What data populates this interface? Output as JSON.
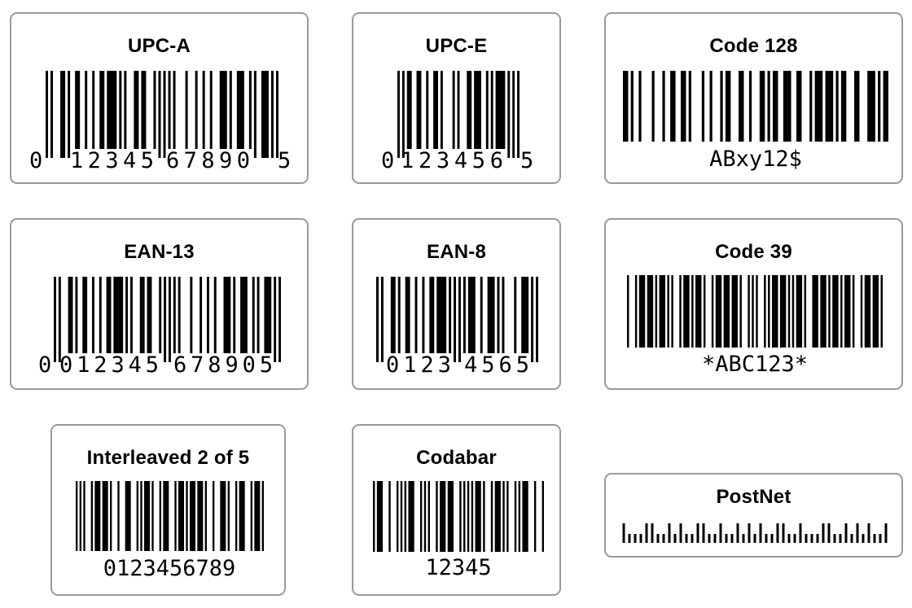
{
  "cards": [
    {
      "title": "UPC-A",
      "text": [
        "0",
        "12345",
        "67890",
        "5"
      ]
    },
    {
      "title": "UPC-E",
      "text": [
        "0",
        "123456",
        "5"
      ]
    },
    {
      "title": "Code 128",
      "text": [
        "ABxy12$"
      ]
    },
    {
      "title": "EAN-13",
      "text": [
        "0",
        "012345",
        "678905"
      ]
    },
    {
      "title": "EAN-8",
      "text": [
        "0123",
        "4565"
      ]
    },
    {
      "title": "Code 39",
      "text": [
        "*ABC123*"
      ]
    },
    {
      "title": "Interleaved 2 of 5",
      "text": [
        "0123456789"
      ]
    },
    {
      "title": "Codabar",
      "text": [
        "12345"
      ]
    },
    {
      "title": "PostNet",
      "text": []
    }
  ]
}
